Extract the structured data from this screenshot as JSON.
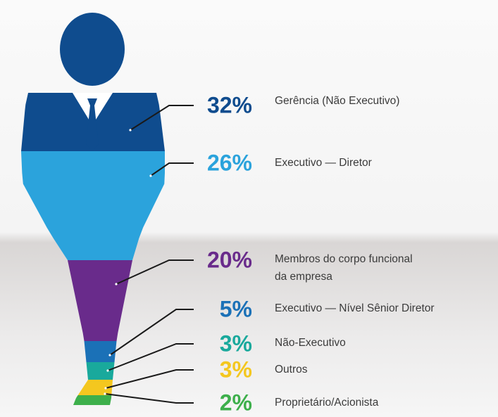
{
  "chart_data": {
    "type": "funnel",
    "categories": [
      "Gerência (Não Executivo)",
      "Executivo — Diretor",
      "Membros do corpo funcional\nda empresa",
      "Executivo — Nível Sênior Diretor",
      "Não-Executivo",
      "Outros",
      "Proprietário/Acionista"
    ],
    "values": [
      32,
      26,
      20,
      5,
      3,
      3,
      2
    ],
    "value_labels": [
      "32%",
      "26%",
      "20%",
      "5%",
      "3%",
      "3%",
      "2%"
    ],
    "colors": [
      "#0f4c8e",
      "#2ba3dc",
      "#692b8b",
      "#1b71b7",
      "#19a99c",
      "#f4c71f",
      "#3daf4b"
    ]
  }
}
